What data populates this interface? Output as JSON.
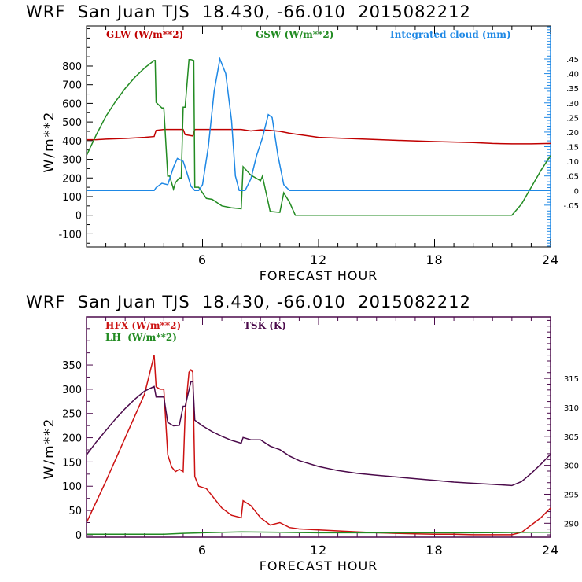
{
  "chart_data": [
    {
      "type": "line",
      "title": "WRF  San Juan TJS  18.430, -66.010  2015082212",
      "xlabel": "FORECAST HOUR",
      "ylabel": "W/m**2",
      "xlim": [
        0,
        24
      ],
      "ylim": [
        -170,
        1015
      ],
      "xticks": [
        6,
        12,
        18,
        24
      ],
      "yticks": [
        -100,
        0,
        100,
        200,
        300,
        400,
        500,
        600,
        700,
        800
      ],
      "y2lim": [
        -0.193,
        0.563
      ],
      "y2ticks": [
        -0.05,
        0,
        0.05,
        0.1,
        0.15,
        0.2,
        0.25,
        0.3,
        0.35,
        0.4,
        0.45
      ],
      "y2tick_labels": [
        "-.05",
        "0",
        ".05",
        ".10",
        ".15",
        ".20",
        ".25",
        ".30",
        ".35",
        ".40",
        ".45"
      ],
      "axis_color": "#1e88e5",
      "legend": [
        "GLW (W/m**2)",
        "GSW (W/m**2)",
        "Integrated cloud (mm)"
      ],
      "legend_placement": "top",
      "series": [
        {
          "name": "GLW (W/m**2)",
          "color": "#c00000",
          "axis": "left",
          "x": [
            0,
            0.5,
            1,
            2,
            3,
            3.5,
            3.6,
            4,
            5,
            5.1,
            5.5,
            5.6,
            6,
            8,
            8.5,
            9,
            9.5,
            10,
            10.5,
            11,
            11.5,
            12,
            14,
            16,
            18,
            20,
            21,
            22,
            23,
            24
          ],
          "y": [
            405,
            405,
            408,
            412,
            418,
            422,
            455,
            460,
            460,
            432,
            425,
            460,
            460,
            460,
            452,
            458,
            455,
            450,
            440,
            432,
            425,
            418,
            410,
            402,
            395,
            390,
            385,
            383,
            383,
            385
          ]
        },
        {
          "name": "GSW (W/m**2)",
          "color": "#228b22",
          "axis": "left",
          "x": [
            0,
            0.5,
            1,
            1.5,
            2,
            2.5,
            3,
            3.5,
            3.55,
            3.6,
            3.9,
            4.0,
            4.2,
            4.3,
            4.5,
            4.6,
            4.8,
            4.9,
            5.0,
            5.1,
            5.3,
            5.4,
            5.55,
            5.6,
            5.8,
            6.2,
            6.5,
            7,
            7.5,
            8,
            8.1,
            8.5,
            9,
            9.1,
            9.5,
            10,
            10.2,
            10.5,
            10.8,
            22,
            22.5,
            23,
            23.5,
            24
          ],
          "y": [
            320,
            430,
            530,
            610,
            680,
            740,
            790,
            830,
            830,
            605,
            575,
            575,
            210,
            210,
            140,
            175,
            200,
            200,
            580,
            580,
            835,
            835,
            830,
            150,
            150,
            90,
            85,
            50,
            40,
            35,
            260,
            215,
            185,
            210,
            20,
            15,
            120,
            70,
            0,
            0,
            60,
            150,
            240,
            320
          ]
        },
        {
          "name": "Integrated cloud (mm)",
          "color": "#1e88e5",
          "axis": "right",
          "x": [
            0,
            3.5,
            3.6,
            3.9,
            4.2,
            4.5,
            4.7,
            5.0,
            5.2,
            5.4,
            5.6,
            5.8,
            6.0,
            6.3,
            6.6,
            6.9,
            7.2,
            7.5,
            7.7,
            7.9,
            8.2,
            8.5,
            8.8,
            9.1,
            9.4,
            9.6,
            9.9,
            10.2,
            10.5,
            11,
            24
          ],
          "y": [
            0,
            0,
            0.01,
            0.025,
            0.02,
            0.08,
            0.11,
            0.1,
            0.06,
            0.015,
            0.0,
            0.0,
            0.02,
            0.15,
            0.34,
            0.45,
            0.4,
            0.24,
            0.05,
            0.0,
            0.0,
            0.04,
            0.12,
            0.18,
            0.26,
            0.25,
            0.12,
            0.02,
            0.0,
            0.0,
            0.0
          ]
        }
      ]
    },
    {
      "type": "line",
      "title": "WRF  San Juan TJS  18.430, -66.010  2015082212",
      "xlabel": "FORECAST HOUR",
      "ylabel": "W/m**2",
      "xlim": [
        0,
        24
      ],
      "ylim": [
        -5,
        449
      ],
      "xticks": [
        6,
        12,
        18,
        24
      ],
      "yticks": [
        0,
        50,
        100,
        150,
        200,
        250,
        300,
        350
      ],
      "y2lim": [
        287.6,
        325.6
      ],
      "y2ticks": [
        290,
        295,
        300,
        305,
        310,
        315
      ],
      "axis_color": "#4b0a4b",
      "legend": [
        "HFX (W/m**2)",
        "LH  (W/m**2)",
        "TSK (K)"
      ],
      "legend_placement": "top-left",
      "series": [
        {
          "name": "HFX (W/m**2)",
          "color": "#cc1111",
          "axis": "left",
          "x": [
            0,
            1,
            2,
            3,
            3.5,
            3.6,
            3.8,
            4.0,
            4.2,
            4.4,
            4.6,
            4.8,
            5.0,
            5.1,
            5.3,
            5.4,
            5.5,
            5.6,
            5.8,
            6.2,
            6.6,
            7.0,
            7.5,
            8.0,
            8.1,
            8.5,
            9.0,
            9.5,
            10.0,
            10.5,
            11,
            12,
            13,
            14,
            15,
            16,
            17,
            18,
            19,
            20,
            21,
            22,
            22.5,
            23,
            23.5,
            24
          ],
          "y": [
            25,
            110,
            200,
            290,
            370,
            305,
            300,
            300,
            165,
            140,
            130,
            135,
            130,
            250,
            335,
            340,
            335,
            120,
            100,
            95,
            75,
            55,
            40,
            35,
            70,
            60,
            35,
            20,
            25,
            15,
            12,
            10,
            8,
            6,
            4,
            3,
            2,
            1,
            1,
            0,
            0,
            0,
            5,
            20,
            35,
            55
          ]
        },
        {
          "name": "LH  (W/m**2)",
          "color": "#228b22",
          "axis": "left",
          "x": [
            0,
            4,
            5,
            6,
            8,
            10,
            12,
            16,
            20,
            23,
            24
          ],
          "y": [
            1,
            1,
            3,
            4,
            6,
            5,
            4,
            4,
            4,
            5,
            5
          ]
        },
        {
          "name": "TSK (K)",
          "color": "#4b0a4b",
          "axis": "right",
          "x": [
            0,
            0.5,
            1,
            1.5,
            2,
            2.5,
            3,
            3.5,
            3.6,
            4.0,
            4.2,
            4.5,
            4.8,
            5.0,
            5.1,
            5.4,
            5.5,
            5.6,
            6.0,
            6.5,
            7.0,
            7.5,
            8.0,
            8.1,
            8.5,
            9.0,
            9.5,
            10.0,
            10.5,
            11,
            12,
            13,
            14,
            15,
            16,
            17,
            18,
            19,
            20,
            21,
            22,
            22.5,
            23,
            23.5,
            24
          ],
          "y": [
            301.8,
            304.0,
            306.0,
            308.0,
            309.8,
            311.4,
            312.8,
            313.6,
            311.8,
            311.8,
            307.4,
            306.8,
            306.9,
            310.2,
            310.2,
            314.4,
            314.5,
            307.8,
            306.8,
            305.8,
            305.0,
            304.3,
            303.8,
            304.8,
            304.4,
            304.4,
            303.3,
            302.7,
            301.6,
            300.8,
            299.8,
            299.1,
            298.6,
            298.3,
            298.0,
            297.7,
            297.4,
            297.1,
            296.9,
            296.7,
            296.5,
            297.2,
            298.6,
            300.2,
            301.9
          ]
        }
      ]
    }
  ]
}
